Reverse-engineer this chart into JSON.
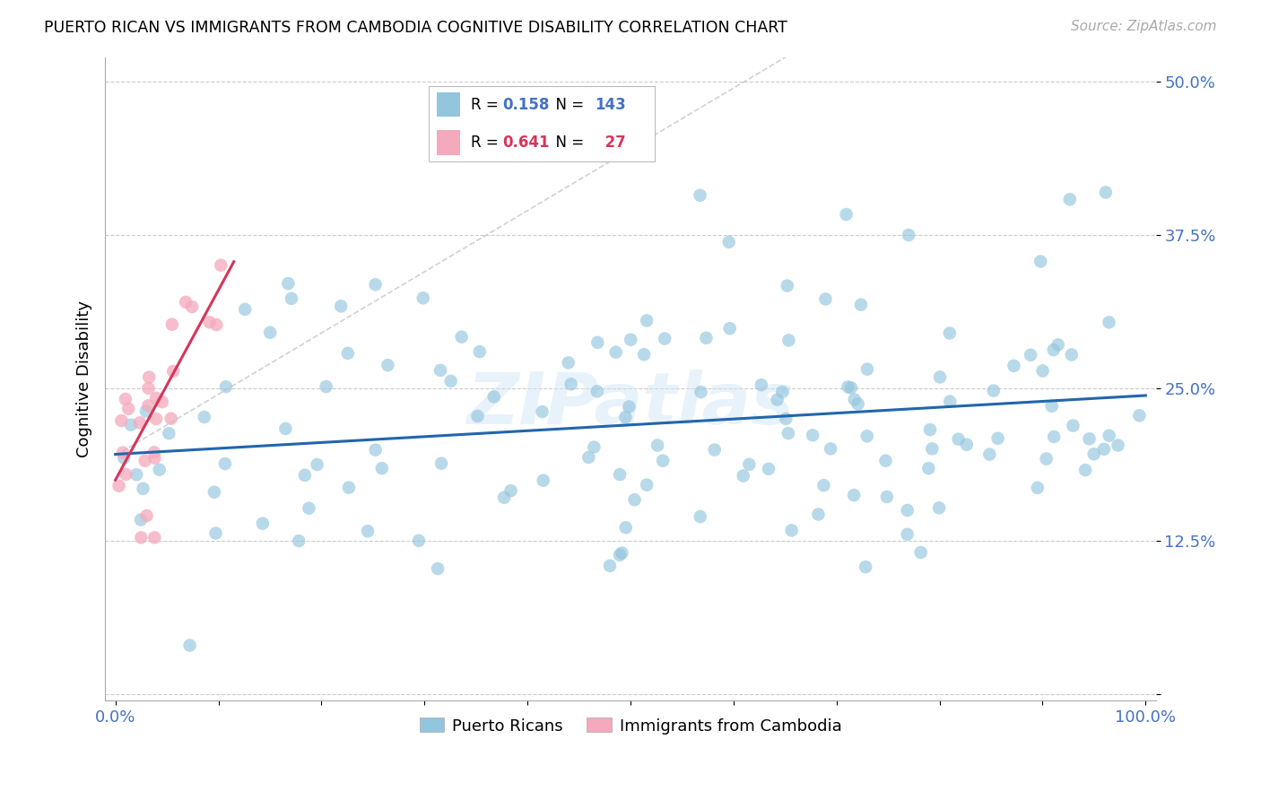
{
  "title": "PUERTO RICAN VS IMMIGRANTS FROM CAMBODIA COGNITIVE DISABILITY CORRELATION CHART",
  "source": "Source: ZipAtlas.com",
  "ylabel": "Cognitive Disability",
  "blue_color": "#92c5de",
  "pink_color": "#f4a9bc",
  "blue_line_color": "#2166ac",
  "pink_line_color": "#d6355a",
  "diag_line_color": "#cccccc",
  "R_blue": 0.158,
  "N_blue": 143,
  "R_pink": 0.641,
  "N_pink": 27,
  "watermark": "ZIPatlas",
  "yticks": [
    0.0,
    0.125,
    0.25,
    0.375,
    0.5
  ],
  "ytick_labels": [
    "",
    "12.5%",
    "25.0%",
    "37.5%",
    "50.0%"
  ],
  "xlim": [
    -0.01,
    1.01
  ],
  "ylim": [
    -0.005,
    0.52
  ],
  "blue_slope": 0.048,
  "blue_intercept": 0.196,
  "pink_slope": 1.55,
  "pink_intercept": 0.175,
  "diag_slope": 0.5,
  "diag_intercept": 0.195
}
